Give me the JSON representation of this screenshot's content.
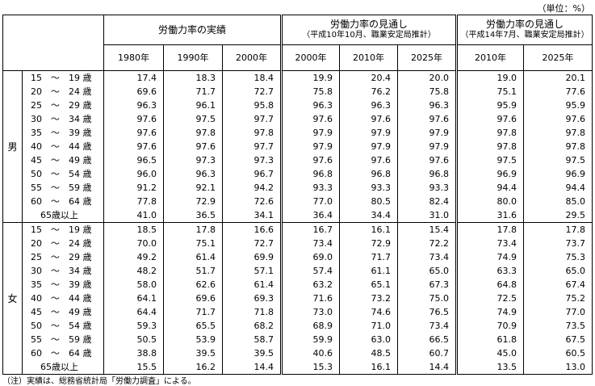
{
  "unit": "（単位：%）",
  "header": {
    "groups": [
      {
        "title": "労働力率の実績"
      },
      {
        "title": "労働力率の見通し",
        "subtitle": "（平成10年10月、職業安定局推計）"
      },
      {
        "title": "労働力率の見通し",
        "subtitle": "（平成14年7月、職業安定局推計）"
      }
    ],
    "years": [
      "1980年",
      "1990年",
      "2000年",
      "2000年",
      "2010年",
      "2025年",
      "2010年",
      "2025年"
    ]
  },
  "sections": [
    {
      "sex": "男",
      "rows": [
        {
          "age": "15　～　19 歳",
          "values": [
            "17.4",
            "18.3",
            "18.4",
            "19.9",
            "20.4",
            "20.0",
            "19.0",
            "20.1"
          ]
        },
        {
          "age": "20　～　24 歳",
          "values": [
            "69.6",
            "71.7",
            "72.7",
            "75.8",
            "76.2",
            "75.8",
            "75.1",
            "77.6"
          ]
        },
        {
          "age": "25　～　29 歳",
          "values": [
            "96.3",
            "96.1",
            "95.8",
            "96.3",
            "96.3",
            "96.3",
            "95.9",
            "95.9"
          ]
        },
        {
          "age": "30　～　34 歳",
          "values": [
            "97.6",
            "97.5",
            "97.7",
            "97.6",
            "97.6",
            "97.6",
            "97.6",
            "97.6"
          ]
        },
        {
          "age": "35　～　39 歳",
          "values": [
            "97.6",
            "97.8",
            "97.8",
            "97.9",
            "97.9",
            "97.9",
            "97.8",
            "97.8"
          ]
        },
        {
          "age": "40　～　44 歳",
          "values": [
            "97.6",
            "97.6",
            "97.7",
            "97.9",
            "97.9",
            "97.9",
            "97.8",
            "97.8"
          ]
        },
        {
          "age": "45　～　49 歳",
          "values": [
            "96.5",
            "97.3",
            "97.3",
            "97.6",
            "97.6",
            "97.6",
            "97.5",
            "97.5"
          ]
        },
        {
          "age": "50　～　54 歳",
          "values": [
            "96.0",
            "96.3",
            "96.7",
            "96.8",
            "96.8",
            "96.8",
            "96.9",
            "96.9"
          ]
        },
        {
          "age": "55　～　59 歳",
          "values": [
            "91.2",
            "92.1",
            "94.2",
            "93.3",
            "93.3",
            "93.3",
            "94.4",
            "94.4"
          ]
        },
        {
          "age": "60　～　64 歳",
          "values": [
            "77.8",
            "72.9",
            "72.6",
            "77.0",
            "80.5",
            "82.4",
            "80.0",
            "85.0"
          ]
        },
        {
          "age": "65歳以上",
          "values": [
            "41.0",
            "36.5",
            "34.1",
            "36.4",
            "34.4",
            "31.0",
            "31.6",
            "29.5"
          ]
        }
      ]
    },
    {
      "sex": "女",
      "rows": [
        {
          "age": "15　～　19 歳",
          "values": [
            "18.5",
            "17.8",
            "16.6",
            "16.7",
            "16.1",
            "15.4",
            "17.8",
            "17.8"
          ]
        },
        {
          "age": "20　～　24 歳",
          "values": [
            "70.0",
            "75.1",
            "72.7",
            "73.4",
            "72.9",
            "72.2",
            "73.4",
            "73.7"
          ]
        },
        {
          "age": "25　～　29 歳",
          "values": [
            "49.2",
            "61.4",
            "69.9",
            "69.0",
            "71.7",
            "73.4",
            "74.9",
            "75.3"
          ]
        },
        {
          "age": "30　～　34 歳",
          "values": [
            "48.2",
            "51.7",
            "57.1",
            "57.4",
            "61.1",
            "65.0",
            "63.3",
            "65.0"
          ]
        },
        {
          "age": "35　～　39 歳",
          "values": [
            "58.0",
            "62.6",
            "61.4",
            "63.2",
            "65.1",
            "67.3",
            "64.8",
            "67.4"
          ]
        },
        {
          "age": "40　～　44 歳",
          "values": [
            "64.1",
            "69.6",
            "69.3",
            "71.6",
            "73.2",
            "75.0",
            "72.5",
            "75.2"
          ]
        },
        {
          "age": "45　～　49 歳",
          "values": [
            "64.4",
            "71.7",
            "71.8",
            "73.0",
            "74.6",
            "76.5",
            "74.9",
            "77.0"
          ]
        },
        {
          "age": "50　～　54 歳",
          "values": [
            "59.3",
            "65.5",
            "68.2",
            "68.9",
            "71.0",
            "73.4",
            "70.9",
            "73.5"
          ]
        },
        {
          "age": "55　～　59 歳",
          "values": [
            "50.5",
            "53.9",
            "58.7",
            "59.9",
            "63.0",
            "66.5",
            "61.8",
            "67.5"
          ]
        },
        {
          "age": "60　～　64 歳",
          "values": [
            "38.8",
            "39.5",
            "39.5",
            "40.6",
            "48.5",
            "60.7",
            "45.0",
            "60.5"
          ]
        },
        {
          "age": "65歳以上",
          "values": [
            "15.5",
            "16.2",
            "14.4",
            "15.3",
            "16.1",
            "14.4",
            "13.5",
            "13.0"
          ]
        }
      ]
    }
  ],
  "note": "（注）実績は、総務省統計局「労働力調査」による。"
}
